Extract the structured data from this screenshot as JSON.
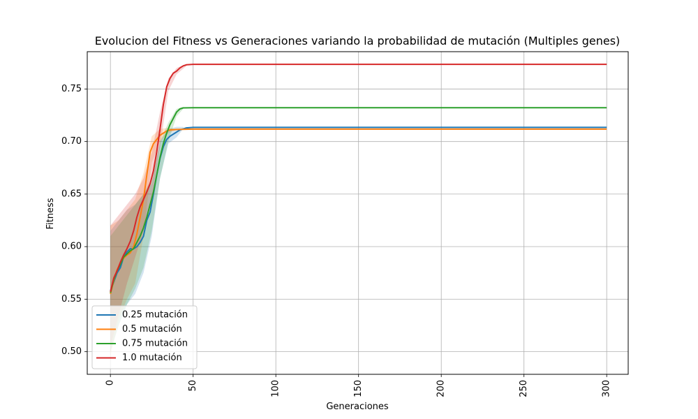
{
  "chart_data": {
    "type": "line",
    "title": "Evolucion del Fitness vs Generaciones variando la probabilidad de mutación (Multiples genes)",
    "xlabel": "Generaciones",
    "ylabel": "Fitness",
    "xlim": [
      -14,
      313
    ],
    "ylim": [
      0.4785,
      0.7855
    ],
    "xticks": [
      0,
      50,
      100,
      150,
      200,
      250,
      300
    ],
    "yticks": [
      0.5,
      0.55,
      0.6,
      0.65,
      0.7,
      0.75
    ],
    "ytick_labels": [
      "0.50",
      "0.55",
      "0.60",
      "0.65",
      "0.70",
      "0.75"
    ],
    "grid": true,
    "legend_position": "lower-left",
    "series": [
      {
        "name": "0.25 mutación",
        "color": "#1f77b4",
        "points": [
          [
            0,
            0.558
          ],
          [
            2,
            0.566
          ],
          [
            4,
            0.575
          ],
          [
            6,
            0.58
          ],
          [
            8,
            0.59
          ],
          [
            10,
            0.595
          ],
          [
            12,
            0.598
          ],
          [
            14,
            0.598
          ],
          [
            16,
            0.6
          ],
          [
            18,
            0.604
          ],
          [
            20,
            0.61
          ],
          [
            22,
            0.625
          ],
          [
            24,
            0.633
          ],
          [
            26,
            0.65
          ],
          [
            28,
            0.668
          ],
          [
            30,
            0.684
          ],
          [
            32,
            0.695
          ],
          [
            34,
            0.702
          ],
          [
            36,
            0.705
          ],
          [
            38,
            0.707
          ],
          [
            40,
            0.709
          ],
          [
            42,
            0.711
          ],
          [
            44,
            0.712
          ],
          [
            46,
            0.713
          ],
          [
            50,
            0.7135
          ],
          [
            300,
            0.7135
          ]
        ],
        "band": [
          [
            0,
            0.5,
            0.615
          ],
          [
            5,
            0.525,
            0.625
          ],
          [
            10,
            0.545,
            0.635
          ],
          [
            15,
            0.555,
            0.64
          ],
          [
            20,
            0.575,
            0.65
          ],
          [
            25,
            0.61,
            0.66
          ],
          [
            30,
            0.665,
            0.7
          ],
          [
            35,
            0.698,
            0.712
          ],
          [
            40,
            0.704,
            0.714
          ],
          [
            44,
            0.712,
            0.714
          ]
        ]
      },
      {
        "name": "0.5 mutación",
        "color": "#ff7f0e",
        "points": [
          [
            0,
            0.555
          ],
          [
            2,
            0.567
          ],
          [
            4,
            0.578
          ],
          [
            6,
            0.584
          ],
          [
            8,
            0.589
          ],
          [
            10,
            0.592
          ],
          [
            12,
            0.594
          ],
          [
            14,
            0.6
          ],
          [
            16,
            0.612
          ],
          [
            18,
            0.628
          ],
          [
            20,
            0.645
          ],
          [
            22,
            0.668
          ],
          [
            24,
            0.69
          ],
          [
            26,
            0.698
          ],
          [
            28,
            0.702
          ],
          [
            30,
            0.706
          ],
          [
            32,
            0.708
          ],
          [
            34,
            0.71
          ],
          [
            36,
            0.711
          ],
          [
            40,
            0.7115
          ],
          [
            50,
            0.7118
          ],
          [
            300,
            0.7118
          ]
        ],
        "band": [
          [
            0,
            0.495,
            0.62
          ],
          [
            5,
            0.53,
            0.625
          ],
          [
            10,
            0.55,
            0.635
          ],
          [
            15,
            0.565,
            0.645
          ],
          [
            20,
            0.61,
            0.67
          ],
          [
            25,
            0.68,
            0.705
          ],
          [
            30,
            0.7,
            0.712
          ],
          [
            35,
            0.708,
            0.713
          ],
          [
            40,
            0.711,
            0.712
          ]
        ]
      },
      {
        "name": "0.75 mutación",
        "color": "#2ca02c",
        "points": [
          [
            0,
            0.556
          ],
          [
            2,
            0.568
          ],
          [
            4,
            0.577
          ],
          [
            6,
            0.583
          ],
          [
            8,
            0.59
          ],
          [
            10,
            0.593
          ],
          [
            12,
            0.596
          ],
          [
            14,
            0.598
          ],
          [
            16,
            0.604
          ],
          [
            18,
            0.61
          ],
          [
            20,
            0.618
          ],
          [
            22,
            0.628
          ],
          [
            24,
            0.64
          ],
          [
            26,
            0.652
          ],
          [
            28,
            0.668
          ],
          [
            30,
            0.685
          ],
          [
            32,
            0.698
          ],
          [
            34,
            0.708
          ],
          [
            36,
            0.716
          ],
          [
            38,
            0.722
          ],
          [
            40,
            0.728
          ],
          [
            42,
            0.731
          ],
          [
            44,
            0.732
          ],
          [
            50,
            0.7322
          ],
          [
            300,
            0.7322
          ]
        ],
        "band": [
          [
            0,
            0.5,
            0.61
          ],
          [
            5,
            0.525,
            0.62
          ],
          [
            10,
            0.545,
            0.63
          ],
          [
            15,
            0.56,
            0.64
          ],
          [
            20,
            0.58,
            0.65
          ],
          [
            25,
            0.615,
            0.665
          ],
          [
            30,
            0.665,
            0.7
          ],
          [
            35,
            0.7,
            0.718
          ],
          [
            40,
            0.724,
            0.731
          ],
          [
            44,
            0.731,
            0.733
          ]
        ]
      },
      {
        "name": "1.0 mutación",
        "color": "#d62728",
        "points": [
          [
            0,
            0.557
          ],
          [
            2,
            0.57
          ],
          [
            4,
            0.577
          ],
          [
            6,
            0.585
          ],
          [
            8,
            0.592
          ],
          [
            10,
            0.598
          ],
          [
            12,
            0.605
          ],
          [
            14,
            0.615
          ],
          [
            16,
            0.628
          ],
          [
            18,
            0.638
          ],
          [
            20,
            0.645
          ],
          [
            22,
            0.652
          ],
          [
            24,
            0.66
          ],
          [
            26,
            0.672
          ],
          [
            28,
            0.69
          ],
          [
            30,
            0.712
          ],
          [
            32,
            0.735
          ],
          [
            34,
            0.752
          ],
          [
            36,
            0.76
          ],
          [
            38,
            0.765
          ],
          [
            40,
            0.767
          ],
          [
            42,
            0.77
          ],
          [
            44,
            0.772
          ],
          [
            46,
            0.773
          ],
          [
            50,
            0.7735
          ],
          [
            300,
            0.7735
          ]
        ],
        "band": [
          [
            0,
            0.505,
            0.62
          ],
          [
            5,
            0.535,
            0.63
          ],
          [
            10,
            0.565,
            0.64
          ],
          [
            15,
            0.59,
            0.65
          ],
          [
            20,
            0.615,
            0.665
          ],
          [
            25,
            0.645,
            0.69
          ],
          [
            30,
            0.695,
            0.728
          ],
          [
            35,
            0.748,
            0.76
          ],
          [
            40,
            0.764,
            0.77
          ],
          [
            46,
            0.772,
            0.774
          ]
        ]
      }
    ]
  }
}
